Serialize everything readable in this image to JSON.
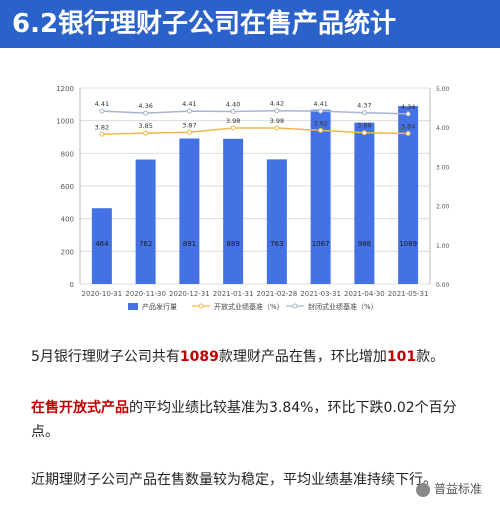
{
  "header": {
    "title": "6.2银行理财子公司在售产品统计"
  },
  "chart_data": {
    "type": "bar",
    "categories": [
      "2020-10-31",
      "2020-11-30",
      "2020-12-31",
      "2021-01-31",
      "2021-02-28",
      "2021-03-31",
      "2021-04-30",
      "2021-05-31"
    ],
    "series": [
      {
        "name": "产品发行量",
        "type": "bar",
        "axis": "left",
        "values": [
          464,
          762,
          891,
          889,
          763,
          1067,
          988,
          1089
        ]
      },
      {
        "name": "开放式业绩基准（%）",
        "type": "line",
        "axis": "right",
        "values": [
          3.82,
          3.85,
          3.87,
          3.98,
          3.98,
          3.92,
          3.86,
          3.84
        ]
      },
      {
        "name": "封闭式业绩基准（%）",
        "type": "line",
        "axis": "right",
        "values": [
          4.41,
          4.36,
          4.41,
          4.4,
          4.42,
          4.41,
          4.37,
          4.34
        ]
      }
    ],
    "y_left": {
      "ticks": [
        0,
        200,
        400,
        600,
        800,
        1000,
        1200
      ],
      "ylim": [
        0,
        1200
      ]
    },
    "y_right": {
      "ticks": [
        "0.00",
        "1.00",
        "2.00",
        "3.00",
        "4.00",
        "5.00"
      ],
      "ylim": [
        0,
        5
      ]
    },
    "legend_position": "bottom",
    "colors": {
      "bar": "#4472e4",
      "open_line": "#f0b84a",
      "closed_line": "#a8b4d0"
    }
  },
  "text": {
    "p1_a": "5月银行理财子公司共有",
    "p1_b": "1089",
    "p1_c": "款理财产品在售，环比增加",
    "p1_d": "101",
    "p1_e": "款。",
    "p2_a": "在售开放式产品",
    "p2_b": "的平均业绩比较基准为3.84%，环比下跌0.02个百分点。",
    "p3": "近期理财子公司产品在售数量较为稳定，平均业绩基准持续下行。",
    "watermark": "普益标准"
  }
}
